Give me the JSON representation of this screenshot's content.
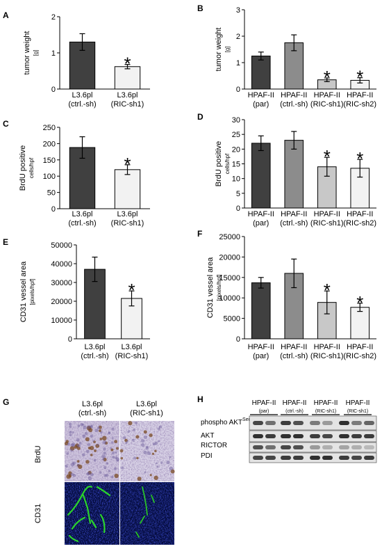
{
  "panels": [
    {
      "letter": "A"
    },
    {
      "letter": "B"
    },
    {
      "letter": "C"
    },
    {
      "letter": "D"
    },
    {
      "letter": "E"
    },
    {
      "letter": "F"
    },
    {
      "letter": "G"
    },
    {
      "letter": "H"
    }
  ],
  "chart_data": [
    {
      "panel": "A",
      "type": "bar",
      "ylim": [
        0,
        2
      ],
      "yticks": [
        "0",
        "1",
        "2"
      ],
      "ylabel": "tumor weight",
      "ylabel_sub": "[g]",
      "categories": [
        [
          "L3.6pl",
          "(ctrl.-sh)"
        ],
        [
          "L3.6pl",
          "(RIC-sh1)"
        ]
      ],
      "values": [
        1.3,
        0.62
      ],
      "errors": [
        0.23,
        0.06
      ],
      "colors": [
        "#404040",
        "#f2f2f2"
      ],
      "significant": [
        false,
        true
      ],
      "star": "*"
    },
    {
      "panel": "B",
      "type": "bar",
      "ylim": [
        0,
        3
      ],
      "yticks": [
        "0",
        "1",
        "2",
        "3"
      ],
      "ylabel": "tumor weight",
      "ylabel_sub": "[g]",
      "categories": [
        [
          "HPAF-II",
          "(par)"
        ],
        [
          "HPAF-II",
          "(ctrl.-sh)"
        ],
        [
          "HPAF-II",
          "(RIC-sh1)"
        ],
        [
          "HPAF-II",
          "(RIC-sh2)"
        ]
      ],
      "values": [
        1.25,
        1.75,
        0.35,
        0.33
      ],
      "errors": [
        0.15,
        0.3,
        0.07,
        0.1
      ],
      "colors": [
        "#404040",
        "#8c8c8c",
        "#c8c8c8",
        "#f2f2f2"
      ],
      "significant": [
        false,
        false,
        true,
        true
      ],
      "star": "*"
    },
    {
      "panel": "C",
      "type": "bar",
      "ylim": [
        0,
        250
      ],
      "yticks": [
        "0",
        "50",
        "100",
        "150",
        "200",
        "250"
      ],
      "ylabel": "BrdU positive",
      "ylabel_sub": "cells/hpf",
      "categories": [
        [
          "L3.6pl",
          "(ctrl.-sh)"
        ],
        [
          "L3.6pl",
          "(RIC-sh1)"
        ]
      ],
      "values": [
        188,
        120
      ],
      "errors": [
        33,
        15
      ],
      "colors": [
        "#404040",
        "#f2f2f2"
      ],
      "significant": [
        false,
        true
      ],
      "star": "*"
    },
    {
      "panel": "D",
      "type": "bar",
      "ylim": [
        0,
        30
      ],
      "yticks": [
        "0",
        "5",
        "10",
        "15",
        "20",
        "25",
        "30"
      ],
      "ylabel": "BrdU positive",
      "ylabel_sub": "cells/hpf",
      "categories": [
        [
          "HPAF-II",
          "(par)"
        ],
        [
          "HPAF-II",
          "(ctrl.-sh)"
        ],
        [
          "HPAF-II",
          "(RIC-sh1)"
        ],
        [
          "HPAF-II",
          "(RIC-sh2)"
        ]
      ],
      "values": [
        22,
        23,
        14,
        13.5
      ],
      "errors": [
        2.5,
        3,
        3.2,
        3
      ],
      "colors": [
        "#404040",
        "#8c8c8c",
        "#c8c8c8",
        "#f2f2f2"
      ],
      "significant": [
        false,
        false,
        true,
        true
      ],
      "star": "*"
    },
    {
      "panel": "E",
      "type": "bar",
      "ylim": [
        0,
        50000
      ],
      "yticks": [
        "0",
        "10000",
        "20000",
        "30000",
        "40000",
        "50000"
      ],
      "ylabel": "CD31 vessel area",
      "ylabel_sub": "[pixels/hpf]",
      "categories": [
        [
          "L3.6pl",
          "(ctrl.-sh)"
        ],
        [
          "L3.6pl",
          "(RIC-sh1)"
        ]
      ],
      "values": [
        37000,
        21500
      ],
      "errors": [
        6500,
        4000
      ],
      "colors": [
        "#404040",
        "#f2f2f2"
      ],
      "significant": [
        false,
        true
      ],
      "star": "*"
    },
    {
      "panel": "F",
      "type": "bar",
      "ylim": [
        0,
        25000
      ],
      "yticks": [
        "0",
        "5000",
        "10000",
        "15000",
        "20000",
        "25000"
      ],
      "ylabel": "CD31 vessel area",
      "ylabel_sub": "[pixels/hpf]",
      "categories": [
        [
          "HPAF-II",
          "(par)"
        ],
        [
          "HPAF-II",
          "(ctrl.-sh)"
        ],
        [
          "HPAF-II",
          "(RIC-sh1)"
        ],
        [
          "HPAF-II",
          "(RIC-sh2)"
        ]
      ],
      "values": [
        13700,
        16000,
        8900,
        7700
      ],
      "errors": [
        1300,
        3500,
        2800,
        1000
      ],
      "colors": [
        "#404040",
        "#8c8c8c",
        "#c8c8c8",
        "#f2f2f2"
      ],
      "significant": [
        false,
        false,
        true,
        true
      ],
      "star": "*"
    }
  ],
  "histology": {
    "columns": [
      [
        "L3.6pl",
        "(ctrl.-sh)"
      ],
      [
        "L3.6pl",
        "(RIC-sh1)"
      ]
    ],
    "rows": [
      "BrdU",
      "CD31"
    ]
  },
  "western": {
    "groups": [
      [
        "HPAF-II",
        "(par)"
      ],
      [
        "HPAF-II",
        "(ctrl.-sh)"
      ],
      [
        "HPAF-II",
        "(RIC-sh1)"
      ],
      [
        "HPAF-II",
        "(RIC-sh1)"
      ]
    ],
    "rows": [
      {
        "label": "phospho AKT",
        "sup": "Ser473"
      },
      {
        "label": "AKT"
      },
      {
        "label": "RICTOR"
      },
      {
        "label": "PDI"
      }
    ]
  }
}
